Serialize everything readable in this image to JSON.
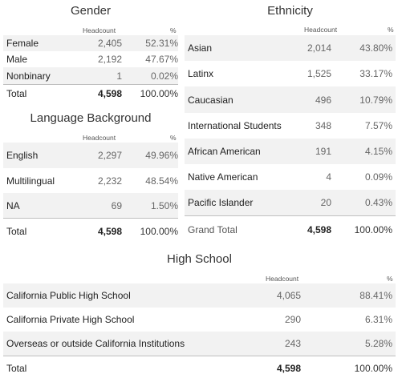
{
  "gender": {
    "title": "Gender",
    "col_headcount": "Headcount",
    "col_pct": "%",
    "rows": [
      {
        "label": "Female",
        "headcount": "2,405",
        "pct": "52.31%"
      },
      {
        "label": "Male",
        "headcount": "2,192",
        "pct": "47.67%"
      },
      {
        "label": "Nonbinary",
        "headcount": "1",
        "pct": "0.02%"
      }
    ],
    "total": {
      "label": "Total",
      "headcount": "4,598",
      "pct": "100.00%"
    }
  },
  "language": {
    "title": "Language Background",
    "col_headcount": "Headcount",
    "col_pct": "%",
    "rows": [
      {
        "label": "English",
        "headcount": "2,297",
        "pct": "49.96%"
      },
      {
        "label": "Multilingual",
        "headcount": "2,232",
        "pct": "48.54%"
      },
      {
        "label": "NA",
        "headcount": "69",
        "pct": "1.50%"
      }
    ],
    "total": {
      "label": "Total",
      "headcount": "4,598",
      "pct": "100.00%"
    }
  },
  "ethnicity": {
    "title": "Ethnicity",
    "col_headcount": "Headcount",
    "col_pct": "%",
    "rows": [
      {
        "label": "Asian",
        "headcount": "2,014",
        "pct": "43.80%"
      },
      {
        "label": "Latinx",
        "headcount": "1,525",
        "pct": "33.17%"
      },
      {
        "label": "Caucasian",
        "headcount": "496",
        "pct": "10.79%"
      },
      {
        "label": "International Students",
        "headcount": "348",
        "pct": "7.57%"
      },
      {
        "label": "African American",
        "headcount": "191",
        "pct": "4.15%"
      },
      {
        "label": "Native American",
        "headcount": "4",
        "pct": "0.09%"
      },
      {
        "label": "Pacific Islander",
        "headcount": "20",
        "pct": "0.43%"
      }
    ],
    "total": {
      "label": "Grand Total",
      "headcount": "4,598",
      "pct": "100.00%"
    }
  },
  "highschool": {
    "title": "High School",
    "col_headcount": "Headcount",
    "col_pct": "%",
    "rows": [
      {
        "label": "California Public High School",
        "headcount": "4,065",
        "pct": "88.41%"
      },
      {
        "label": "California Private High School",
        "headcount": "290",
        "pct": "6.31%"
      },
      {
        "label": "Overseas or outside California Institutions",
        "headcount": "243",
        "pct": "5.28%"
      }
    ],
    "total": {
      "label": "Total",
      "headcount": "4,598",
      "pct": "100.00%"
    }
  }
}
